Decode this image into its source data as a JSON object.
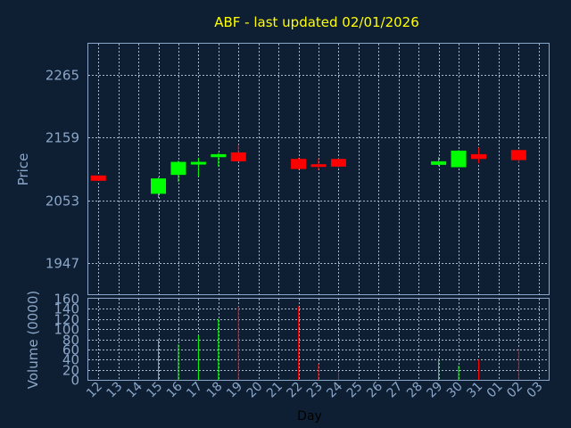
{
  "chart_data": {
    "type": "candlestick",
    "title": "ABF - last updated 02/01/2026",
    "price_ylabel": "Price",
    "volume_ylabel": "Volume (0000)",
    "xlabel": "Day",
    "price_ticks": [
      1947,
      2053,
      2159,
      2265
    ],
    "price_ylim": [
      1894,
      2318
    ],
    "volume_ticks": [
      0,
      20,
      40,
      60,
      80,
      100,
      120,
      140,
      160
    ],
    "volume_ylim": [
      0,
      160
    ],
    "days": [
      "12",
      "13",
      "14",
      "15",
      "16",
      "17",
      "18",
      "19",
      "20",
      "21",
      "22",
      "23",
      "24",
      "25",
      "26",
      "27",
      "28",
      "29",
      "30",
      "31",
      "01",
      "02",
      "03"
    ],
    "colors": {
      "up": "#00ff00",
      "down": "#ff0000",
      "background": "#0f1f33",
      "title": "#ffff00",
      "axis": "#8aa6c8"
    },
    "candles": [
      {
        "day": "12",
        "open": 2095,
        "close": 2086,
        "high": 2095,
        "low": 2086,
        "volume": 0
      },
      {
        "day": "15",
        "open": 2064,
        "close": 2090,
        "high": 2092,
        "low": 2057,
        "volume": 80
      },
      {
        "day": "16",
        "open": 2096,
        "close": 2118,
        "high": 2120,
        "low": 2084,
        "volume": 70
      },
      {
        "day": "17",
        "open": 2114,
        "close": 2118,
        "high": 2125,
        "low": 2093,
        "volume": 88
      },
      {
        "day": "18",
        "open": 2126,
        "close": 2131,
        "high": 2133,
        "low": 2110,
        "volume": 120
      },
      {
        "day": "19",
        "open": 2134,
        "close": 2119,
        "high": 2147,
        "low": 2118,
        "volume": 145
      },
      {
        "day": "22",
        "open": 2123,
        "close": 2106,
        "high": 2125,
        "low": 2105,
        "volume": 145
      },
      {
        "day": "23",
        "open": 2114,
        "close": 2111,
        "high": 2124,
        "low": 2104,
        "volume": 32
      },
      {
        "day": "24",
        "open": 2123,
        "close": 2110,
        "high": 2124,
        "low": 2108,
        "volume": 15
      },
      {
        "day": "29",
        "open": 2113,
        "close": 2119,
        "high": 2126,
        "low": 2111,
        "volume": 42
      },
      {
        "day": "30",
        "open": 2109,
        "close": 2137,
        "high": 2138,
        "low": 2109,
        "volume": 28
      },
      {
        "day": "31",
        "open": 2131,
        "close": 2123,
        "high": 2142,
        "low": 2116,
        "volume": 40
      },
      {
        "day": "02",
        "open": 2138,
        "close": 2121,
        "high": 2139,
        "low": 2116,
        "volume": 62
      }
    ]
  }
}
